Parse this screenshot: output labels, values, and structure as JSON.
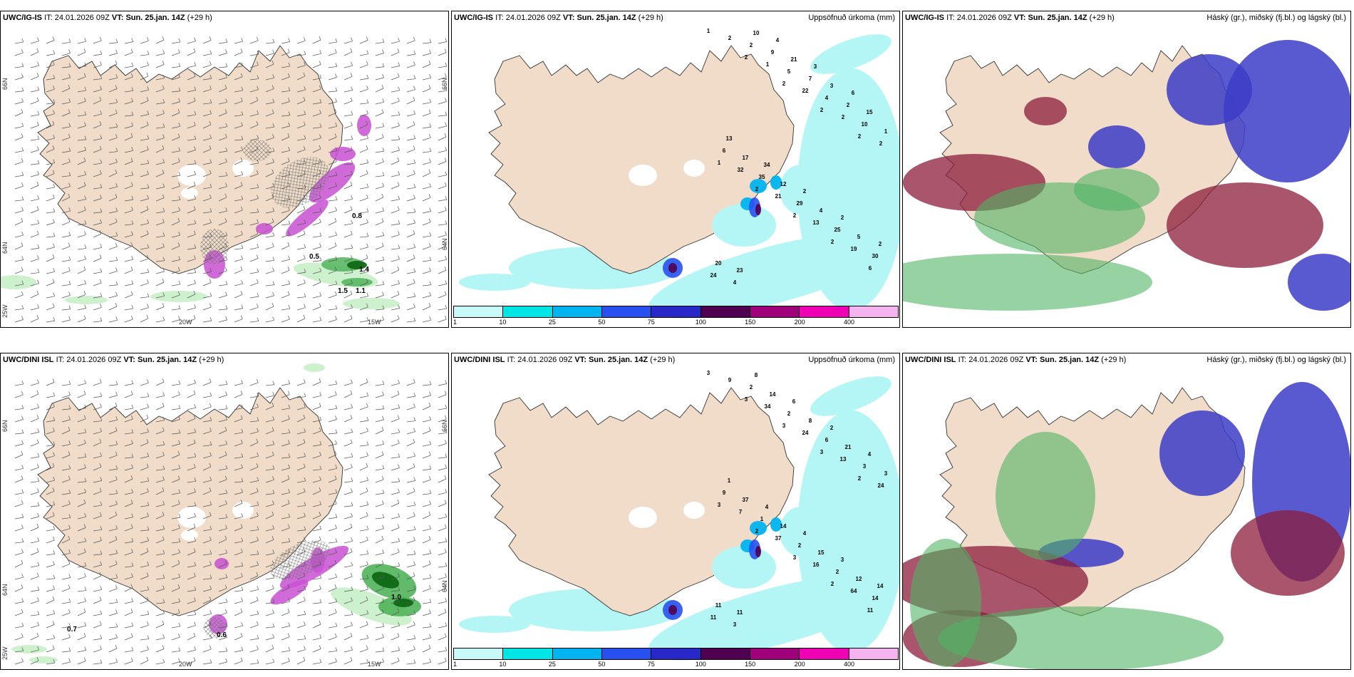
{
  "panels": [
    {
      "model": "UWC/IG-IS",
      "it_label": "IT:",
      "it": "24.01.2026 09Z",
      "vt_label": "VT:",
      "vt": "Sun. 25.jan. 14Z",
      "lead": "(+29 h)",
      "title": ""
    },
    {
      "model": "UWC/IG-IS",
      "it_label": "IT:",
      "it": "24.01.2026 09Z",
      "vt_label": "VT:",
      "vt": "Sun. 25.jan. 14Z",
      "lead": "(+29 h)",
      "title": "Uppsöfnuð úrkoma (mm)"
    },
    {
      "model": "UWC/IG-IS",
      "it_label": "IT:",
      "it": "24.01.2026 09Z",
      "vt_label": "VT:",
      "vt": "Sun. 25.jan. 14Z",
      "lead": "(+29 h)",
      "title": "Háský (gr.), miðský (fj.bl.) og lágský (bl.)"
    },
    {
      "model": "UWC/DINI ISL",
      "it_label": "IT:",
      "it": "24.01.2026 09Z",
      "vt_label": "VT:",
      "vt": "Sun. 25.jan. 14Z",
      "lead": "(+29 h)",
      "title": ""
    },
    {
      "model": "UWC/DINI ISL",
      "it_label": "IT:",
      "it": "24.01.2026 09Z",
      "vt_label": "VT:",
      "vt": "Sun. 25.jan. 14Z",
      "lead": "(+29 h)",
      "title": "Uppsöfnuð úrkoma (mm)"
    },
    {
      "model": "UWC/DINI ISL",
      "it_label": "IT:",
      "it": "24.01.2026 09Z",
      "vt_label": "VT:",
      "vt": "Sun. 25.jan. 14Z",
      "lead": "(+29 h)",
      "title": "Háský (gr.), miðský (fj.bl.) og lágský (bl.)"
    }
  ],
  "axis_labels": {
    "lon": [
      "20W",
      "15W"
    ],
    "lat": [
      "66N",
      "64N",
      "25W"
    ],
    "lat_right": [
      "66N",
      "64N"
    ]
  },
  "colorbar": {
    "ticks": [
      "1",
      "10",
      "25",
      "50",
      "75",
      "100",
      "150",
      "200",
      "400"
    ],
    "colors": [
      "#c8fafa",
      "#00e6e6",
      "#00b4f0",
      "#2850f0",
      "#2828c8",
      "#500050",
      "#a0007a",
      "#f000b4",
      "#f5b4f0"
    ]
  },
  "colors": {
    "land": "#f0dcc8",
    "precip_light": "#b4f5f5",
    "snow_light": "#c8f0c8",
    "snow_mid": "#50b45a",
    "snow_dark": "#0a640f",
    "magenta": "#c850d2",
    "cloud_high": "#dcc8c8",
    "cloud_mid": "#50b464",
    "cloud_low": "#3c3cc8",
    "cloud_dark": "#8c1e3c"
  },
  "precip_values_top": [
    "1",
    "2",
    "2",
    "2",
    "2",
    "1",
    "2",
    "2",
    "2",
    "6",
    "2",
    "1",
    "22",
    "2",
    "2",
    "32",
    "21",
    "13",
    "19",
    "24",
    "2",
    "5",
    "4",
    "10",
    "6",
    "35",
    "29",
    "25",
    "30",
    "4",
    "9",
    "7",
    "2",
    "1",
    "17",
    "12",
    "4",
    "5",
    "20",
    "10",
    "21",
    "3",
    "15",
    "13",
    "34",
    "2",
    "2",
    "2",
    "23",
    "4",
    "3",
    "6"
  ],
  "precip_values_bottom": [
    "3",
    "3",
    "3",
    "3",
    "2",
    "3",
    "2",
    "3",
    "2",
    "11",
    "9",
    "34",
    "24",
    "13",
    "24",
    "7",
    "37",
    "16",
    "64",
    "11",
    "2",
    "2",
    "6",
    "3",
    "9",
    "1",
    "2",
    "2",
    "14",
    "3",
    "14",
    "8",
    "21",
    "3",
    "37",
    "14",
    "15",
    "12",
    "11",
    "8",
    "6",
    "2",
    "4",
    "1",
    "4",
    "4",
    "3",
    "14",
    "11"
  ],
  "snow_values_top": [
    "0.8",
    "0.5",
    "1.4",
    "1.5",
    "1.1"
  ],
  "snow_values_bottom": [
    "1.0",
    "0.7",
    "0.6"
  ]
}
